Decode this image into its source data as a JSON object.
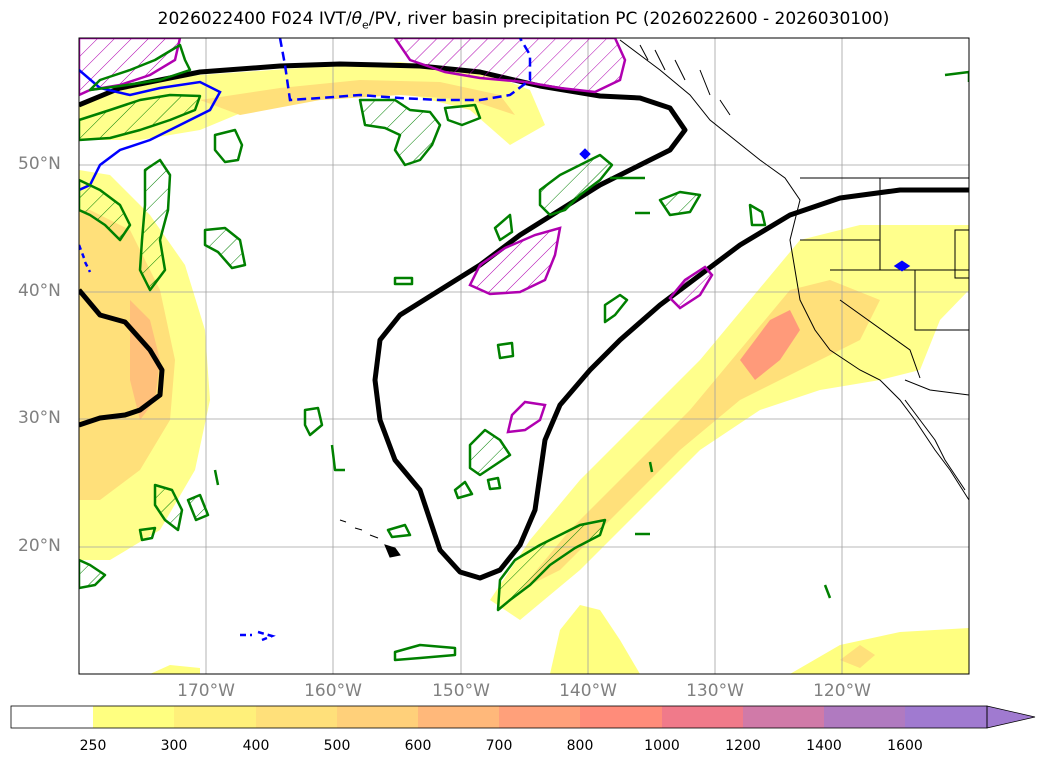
{
  "title_main": "2026022400 F024 IVT/",
  "title_theta": "θ",
  "title_sub": "e",
  "title_rest": "/PV, river basin precipitation PC (2026022600 - 2026030100)",
  "lat_labels": [
    "50°N",
    "40°N",
    "30°N",
    "20°N"
  ],
  "lon_labels": [
    "170°W",
    "160°W",
    "150°W",
    "140°W",
    "130°W",
    "120°W"
  ],
  "colorbar": {
    "ticks": [
      "250",
      "300",
      "400",
      "500",
      "600",
      "700",
      "800",
      "1000",
      "1200",
      "1400",
      "1600"
    ],
    "colors": [
      "#ffffff",
      "#ffff80",
      "#fff07a",
      "#ffe07a",
      "#ffd07a",
      "#ffb87a",
      "#ffa07a",
      "#ff8c7a",
      "#f07a8a",
      "#d07aa8",
      "#b07ac0",
      "#a07ad0"
    ],
    "extend": "max"
  },
  "colors": {
    "ivt_shading": "#ffe07a",
    "theta_e_contour": "#008000",
    "pv_positive": "#0000ff",
    "hatch_region": "#b000b0",
    "basin_contour": "#000000",
    "coastline": "#000000",
    "gridline": "#a0a0a0"
  }
}
